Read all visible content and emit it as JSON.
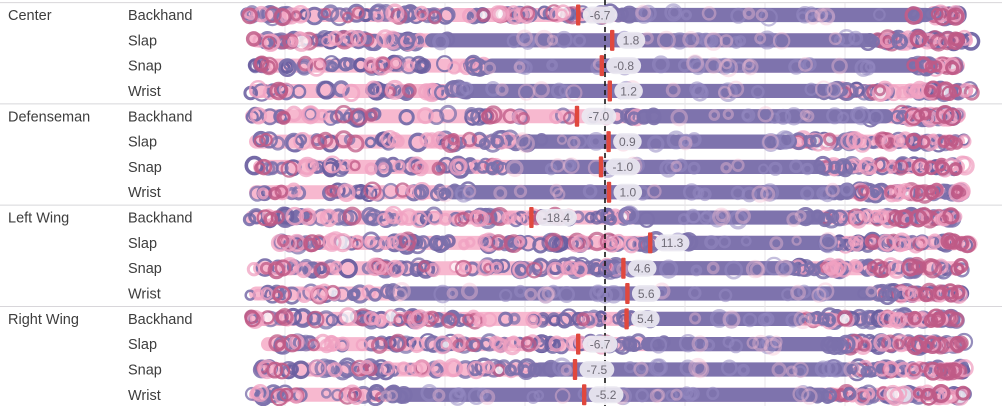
{
  "chart_data": {
    "type": "scatter",
    "variant": "strip-plot-with-reference-markers",
    "title": "",
    "x_domain": [
      -100,
      100
    ],
    "gridline_step": 20,
    "zero_reference": 0,
    "grid": true,
    "legend": "none",
    "group_labels": [
      "Center",
      "Defenseman",
      "Left Wing",
      "Right Wing"
    ],
    "shot_labels": [
      "Backhand",
      "Slap",
      "Snap",
      "Wrist"
    ],
    "rows": [
      {
        "position": "Center",
        "shot": "Backhand",
        "value": -6.7,
        "value_label": "-6.7",
        "strip": [
          -90,
          89
        ],
        "solid": [
          3,
          82
        ],
        "lp": 55,
        "rp": 12
      },
      {
        "position": "Center",
        "shot": "Slap",
        "value": 1.8,
        "value_label": "1.8",
        "strip": [
          -89,
          92
        ],
        "solid": [
          -45,
          68
        ],
        "lp": 32,
        "rp": 22
      },
      {
        "position": "Center",
        "shot": "Snap",
        "value": -0.8,
        "value_label": "-0.8",
        "strip": [
          -88,
          90
        ],
        "solid": [
          -30,
          78
        ],
        "lp": 30,
        "rp": 14
      },
      {
        "position": "Center",
        "shot": "Wrist",
        "value": 1.2,
        "value_label": "1.2",
        "strip": [
          -89,
          92
        ],
        "solid": [
          -36,
          59
        ],
        "lp": 20,
        "rp": 26
      },
      {
        "position": "Defenseman",
        "shot": "Backhand",
        "value": -7.0,
        "value_label": "-7.0",
        "strip": [
          -90,
          90
        ],
        "solid": [
          8,
          72
        ],
        "lp": 30,
        "rp": 20
      },
      {
        "position": "Defenseman",
        "shot": "Slap",
        "value": 0.9,
        "value_label": "0.9",
        "strip": [
          -89,
          90
        ],
        "solid": [
          -21,
          48
        ],
        "lp": 28,
        "rp": 30
      },
      {
        "position": "Defenseman",
        "shot": "Snap",
        "value": -1.0,
        "value_label": "-1.0",
        "strip": [
          -88,
          90
        ],
        "solid": [
          -25,
          55
        ],
        "lp": 32,
        "rp": 28
      },
      {
        "position": "Defenseman",
        "shot": "Wrist",
        "value": 1.0,
        "value_label": "1.0",
        "strip": [
          -89,
          90
        ],
        "solid": [
          -40,
          62
        ],
        "lp": 18,
        "rp": 24
      },
      {
        "position": "Left Wing",
        "shot": "Backhand",
        "value": -18.4,
        "value_label": "-18.4",
        "strip": [
          -90,
          88
        ],
        "solid": [
          6,
          55
        ],
        "lp": 55,
        "rp": 30
      },
      {
        "position": "Left Wing",
        "shot": "Slap",
        "value": 11.3,
        "value_label": "11.3",
        "strip": [
          -83,
          92
        ],
        "solid": [
          15,
          58
        ],
        "lp": 60,
        "rp": 26
      },
      {
        "position": "Left Wing",
        "shot": "Snap",
        "value": 4.6,
        "value_label": "4.6",
        "strip": [
          -88,
          90
        ],
        "solid": [
          3,
          48
        ],
        "lp": 55,
        "rp": 32
      },
      {
        "position": "Left Wing",
        "shot": "Wrist",
        "value": 5.6,
        "value_label": "5.6",
        "strip": [
          -89,
          90
        ],
        "solid": [
          -52,
          68
        ],
        "lp": 16,
        "rp": 20
      },
      {
        "position": "Right Wing",
        "shot": "Backhand",
        "value": 5.4,
        "value_label": "5.4",
        "strip": [
          -90,
          88
        ],
        "solid": [
          10,
          50
        ],
        "lp": 55,
        "rp": 32
      },
      {
        "position": "Right Wing",
        "shot": "Slap",
        "value": -6.7,
        "value_label": "-6.7",
        "strip": [
          -86,
          90
        ],
        "solid": [
          9,
          60
        ],
        "lp": 50,
        "rp": 24
      },
      {
        "position": "Right Wing",
        "shot": "Snap",
        "value": -7.5,
        "value_label": "-7.5",
        "strip": [
          -88,
          90
        ],
        "solid": [
          -18,
          62
        ],
        "lp": 36,
        "rp": 24
      },
      {
        "position": "Right Wing",
        "shot": "Wrist",
        "value": -5.2,
        "value_label": "-5.2",
        "strip": [
          -89,
          91
        ],
        "solid": [
          -55,
          56
        ],
        "lp": 15,
        "rp": 28
      }
    ]
  },
  "colors": {
    "purple_solid": "#7e73ad",
    "purple_ring": "#7b70ab",
    "purple_ring_dark": "#6a5fa0",
    "purple_ring_light": "#9388c1",
    "pink_band": "#f7b8cf",
    "pink_ring": "#f0a2c1",
    "pink_ring_light": "#f6bdd2",
    "rose_ring": "#bf5a86",
    "red_marker": "#e0483e",
    "pill_bg": "#ebe8f1",
    "pill_text": "#6f6b76",
    "zero_line": "#141414",
    "gridline": "#e8e6ea",
    "separator": "#d8d6da",
    "label_text": "#3d3d3d",
    "background": "#ffffff"
  }
}
